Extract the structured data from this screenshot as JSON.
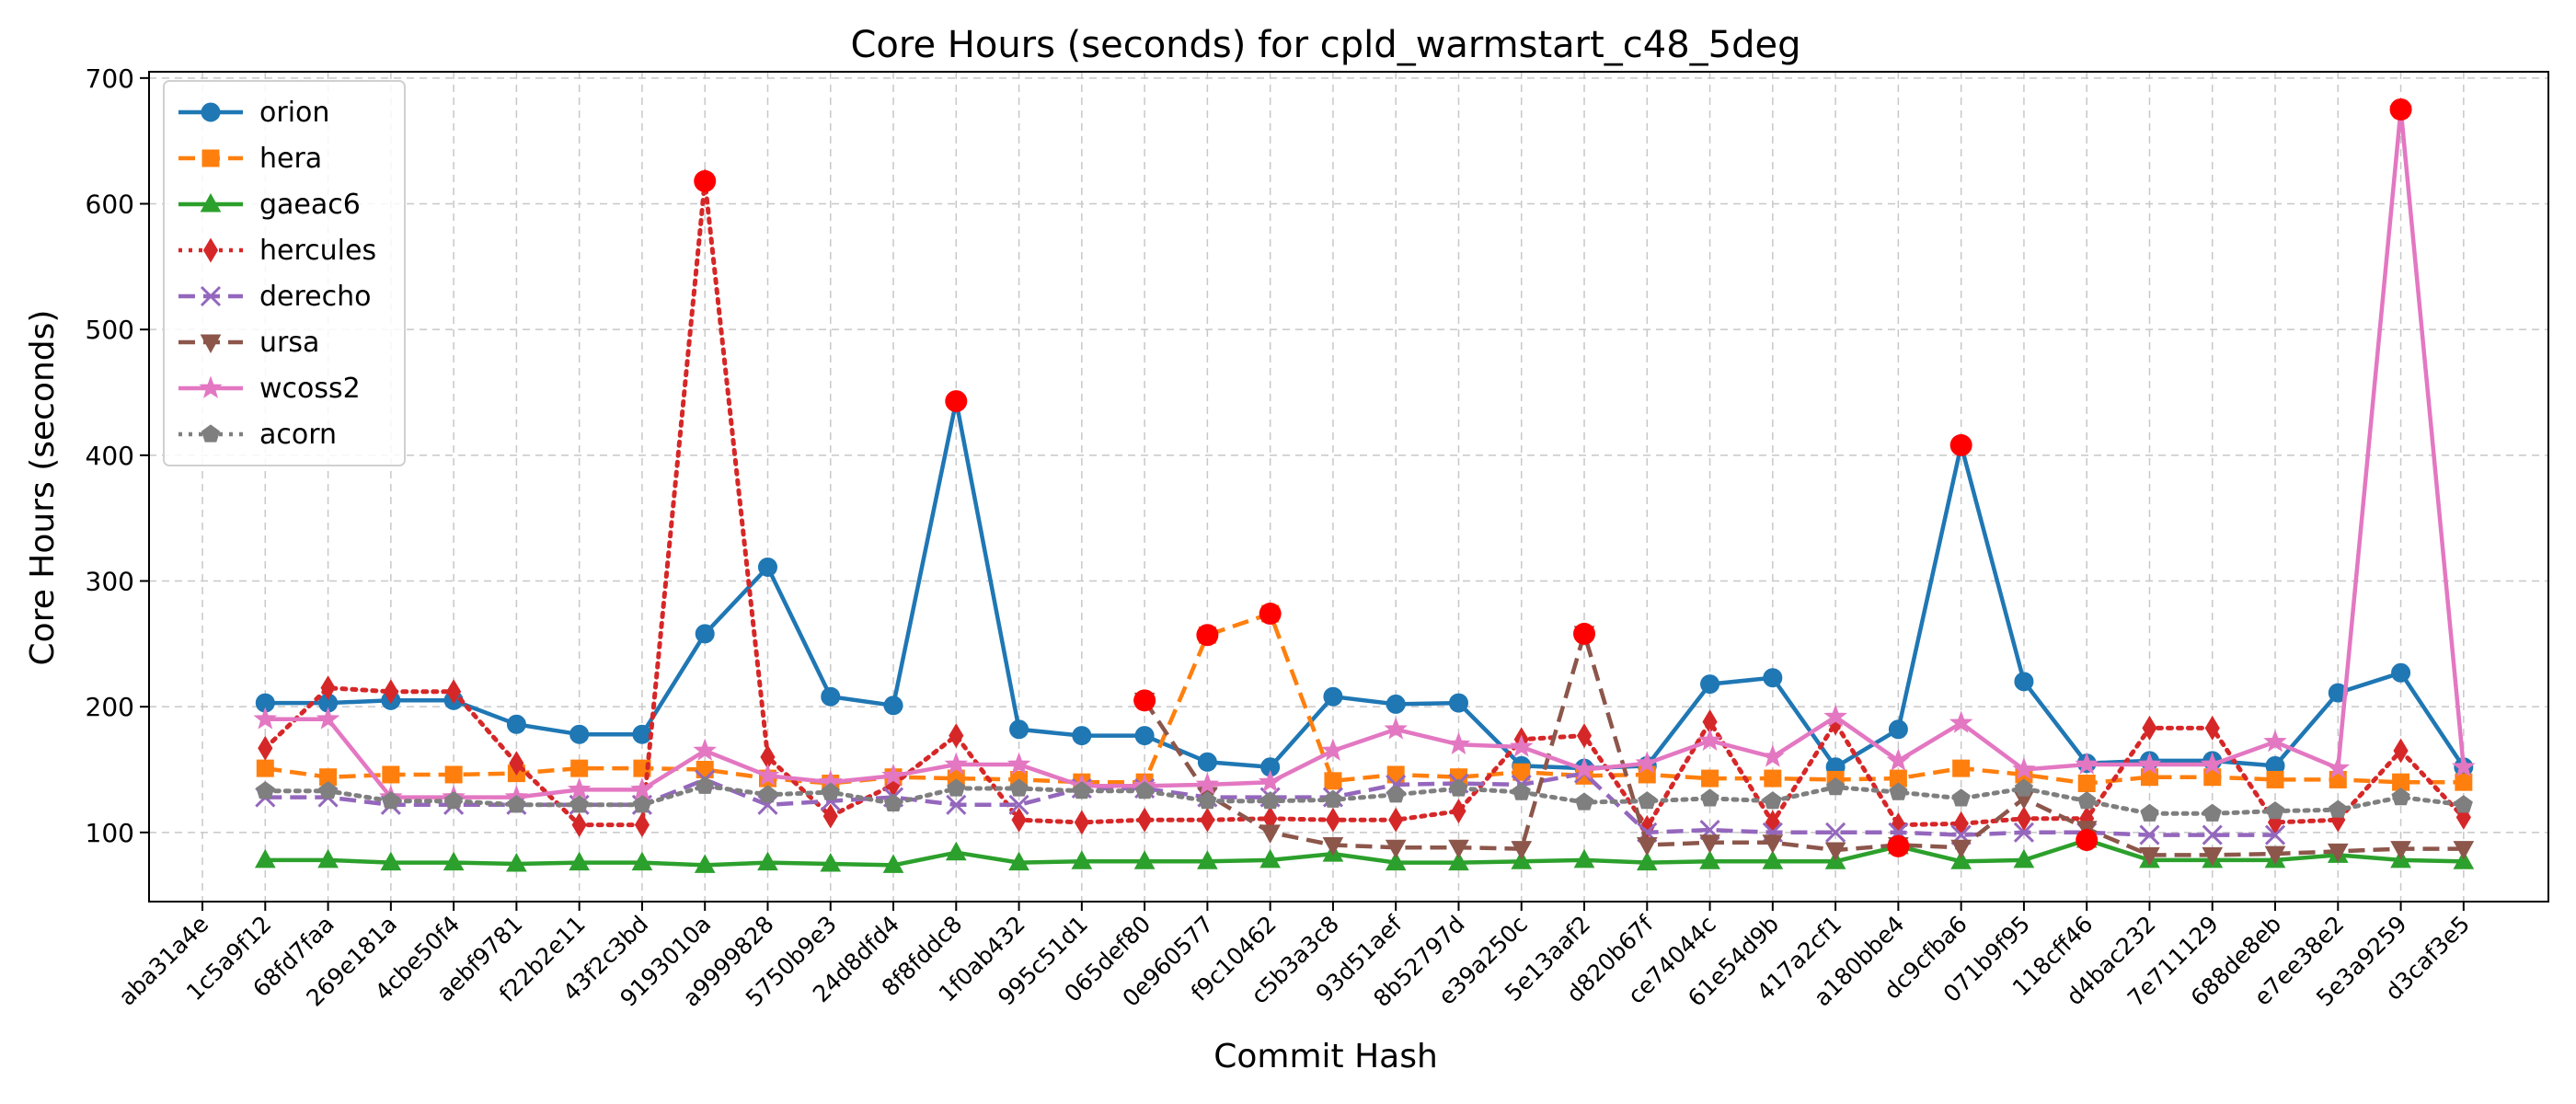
{
  "chart_data": {
    "type": "line",
    "title": "Core Hours (seconds) for cpld_warmstart_c48_5deg",
    "xlabel": "Commit Hash",
    "ylabel": "Core Hours (seconds)",
    "ylim": [
      45,
      705
    ],
    "yticks": [
      100,
      200,
      300,
      400,
      500,
      600,
      700
    ],
    "grid": true,
    "legend_position": "top-left",
    "categories": [
      "aba31a4e",
      "1c5a9f12",
      "68fd7faa",
      "269e181a",
      "4cbe50f4",
      "aebf9781",
      "f22b2e11",
      "43f2c3bd",
      "9193010a",
      "a9999828",
      "5750b9e3",
      "24d8dfd4",
      "8f8fddc8",
      "1f0ab432",
      "995c51d1",
      "065def80",
      "0e960577",
      "f9c10462",
      "c5b3a3c8",
      "93d51aef",
      "8b52797d",
      "e39a250c",
      "5e13aaf2",
      "d820b67f",
      "ce74044c",
      "61e54d9b",
      "417a2cf1",
      "a180bbe4",
      "dc9cfba6",
      "071b9f95",
      "118cff46",
      "d4bac232",
      "7e711129",
      "688de8eb",
      "e7ee38e2",
      "5e3a9259",
      "d3caf3e5"
    ],
    "series": [
      {
        "name": "orion",
        "color": "#1f77b4",
        "marker": "circle",
        "dash": "solid",
        "values": [
          null,
          203,
          203,
          205,
          205,
          186,
          178,
          178,
          258,
          311,
          208,
          201,
          443,
          182,
          177,
          177,
          156,
          152,
          208,
          202,
          203,
          153,
          151,
          153,
          218,
          223,
          152,
          182,
          408,
          220,
          155,
          157,
          157,
          153,
          211,
          227,
          152
        ]
      },
      {
        "name": "hera",
        "color": "#ff7f0e",
        "marker": "square",
        "dash": "dashed",
        "values": [
          null,
          151,
          144,
          146,
          146,
          147,
          151,
          151,
          150,
          143,
          139,
          144,
          143,
          142,
          140,
          140,
          257,
          274,
          141,
          146,
          144,
          148,
          145,
          146,
          143,
          143,
          142,
          143,
          151,
          146,
          139,
          144,
          144,
          142,
          142,
          140,
          140
        ]
      },
      {
        "name": "gaeac6",
        "color": "#2ca02c",
        "marker": "triangle-up",
        "dash": "solid",
        "values": [
          null,
          78,
          78,
          76,
          76,
          75,
          76,
          76,
          74,
          76,
          75,
          74,
          84,
          76,
          77,
          77,
          77,
          78,
          83,
          76,
          76,
          77,
          78,
          76,
          77,
          77,
          77,
          89,
          77,
          78,
          94,
          78,
          78,
          78,
          82,
          78,
          77
        ]
      },
      {
        "name": "hercules",
        "color": "#d62728",
        "marker": "diamond",
        "dash": "dotted",
        "values": [
          null,
          167,
          215,
          212,
          212,
          155,
          106,
          106,
          618,
          160,
          113,
          138,
          177,
          110,
          108,
          110,
          110,
          111,
          110,
          110,
          117,
          174,
          177,
          104,
          188,
          108,
          187,
          106,
          107,
          111,
          111,
          183,
          183,
          108,
          110,
          165,
          112
        ]
      },
      {
        "name": "derecho",
        "color": "#9467bd",
        "marker": "x",
        "dash": "dashed",
        "values": [
          null,
          128,
          128,
          122,
          122,
          122,
          122,
          122,
          142,
          122,
          125,
          128,
          122,
          122,
          135,
          135,
          128,
          128,
          128,
          138,
          139,
          138,
          147,
          100,
          102,
          100,
          100,
          100,
          98,
          100,
          100,
          98,
          98,
          98,
          null,
          null,
          null
        ]
      },
      {
        "name": "ursa",
        "color": "#8c564b",
        "marker": "triangle-down",
        "dash": "dashed",
        "values": [
          null,
          null,
          null,
          null,
          null,
          null,
          null,
          null,
          null,
          null,
          null,
          null,
          null,
          null,
          null,
          205,
          130,
          100,
          90,
          88,
          88,
          87,
          258,
          90,
          92,
          92,
          86,
          90,
          88,
          127,
          103,
          82,
          82,
          83,
          85,
          87,
          87
        ]
      },
      {
        "name": "wcoss2",
        "color": "#e377c2",
        "marker": "star",
        "dash": "solid",
        "values": [
          null,
          190,
          190,
          128,
          128,
          128,
          134,
          134,
          165,
          145,
          140,
          145,
          154,
          154,
          137,
          137,
          138,
          140,
          165,
          182,
          170,
          168,
          150,
          155,
          173,
          160,
          192,
          157,
          187,
          150,
          154,
          154,
          154,
          172,
          151,
          675,
          152
        ]
      },
      {
        "name": "acorn",
        "color": "#7f7f7f",
        "marker": "pentagon",
        "dash": "dotted",
        "values": [
          null,
          133,
          133,
          125,
          125,
          122,
          122,
          122,
          137,
          130,
          132,
          123,
          135,
          135,
          133,
          133,
          125,
          125,
          126,
          130,
          135,
          132,
          124,
          125,
          127,
          125,
          136,
          132,
          127,
          135,
          125,
          115,
          115,
          117,
          118,
          128,
          122
        ]
      }
    ],
    "highlight_points": [
      {
        "x": "9193010a",
        "y": 618
      },
      {
        "x": "8f8fddc8",
        "y": 443
      },
      {
        "x": "065def80",
        "y": 205
      },
      {
        "x": "0e960577",
        "y": 257
      },
      {
        "x": "f9c10462",
        "y": 274
      },
      {
        "x": "5e13aaf2",
        "y": 258
      },
      {
        "x": "a180bbe4",
        "y": 89
      },
      {
        "x": "dc9cfba6",
        "y": 408
      },
      {
        "x": "118cff46",
        "y": 94
      },
      {
        "x": "5e3a9259",
        "y": 675
      }
    ],
    "highlight_color": "#ff0000"
  }
}
